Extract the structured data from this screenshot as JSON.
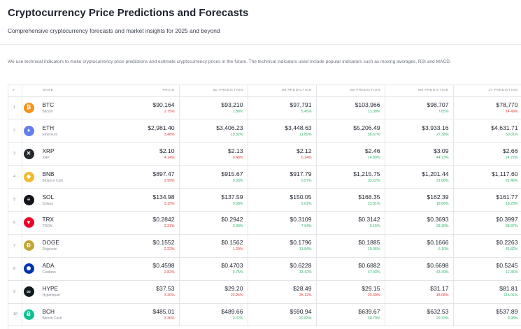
{
  "header": {
    "title": "Cryptocurrency Price Predictions and Forecasts",
    "subtitle": "Comprehensive cryptocurrency forecasts and market insights for 2025 and beyond"
  },
  "intro": "We use technical indicators to make cryptocurrency price predictions and estimate cryptocurrency prices in the future. The technical indicators used include popular indicators such as moving averages, RSI and MACD.",
  "table": {
    "columns": [
      "#",
      "NAME",
      "PRICE",
      "5D PREDICTION",
      "1M PREDICTION",
      "3M PREDICTION",
      "6M PREDICTION",
      "1Y PREDICTION"
    ],
    "rows": [
      {
        "rank": "1",
        "symbol": "BTC",
        "name": "Bitcoin",
        "icon": "bitcoin-icon",
        "color": "#f7931a",
        "glyph": "₿",
        "cells": [
          [
            "$90,164",
            "2.75%",
            "down"
          ],
          [
            "$93,210",
            "1.88%",
            "up"
          ],
          [
            "$97,791",
            "5.45%",
            "up"
          ],
          [
            "$103,966",
            "13.38%",
            "up"
          ],
          [
            "$98,707",
            "7.65%",
            "up"
          ],
          [
            "$78,770",
            "14.49%",
            "down"
          ]
        ]
      },
      {
        "rank": "2",
        "symbol": "ETH",
        "name": "Ethereum",
        "icon": "ethereum-icon",
        "color": "#627eea",
        "glyph": "♦",
        "cells": [
          [
            "$2,981.40",
            "3.48%",
            "down"
          ],
          [
            "$3,406.23",
            "10.32%",
            "up"
          ],
          [
            "$3,448.63",
            "11.69%",
            "up"
          ],
          [
            "$5,206.49",
            "58.67%",
            "up"
          ],
          [
            "$3,933.16",
            "27.38%",
            "up"
          ],
          [
            "$4,631.71",
            "50.01%",
            "up"
          ]
        ]
      },
      {
        "rank": "3",
        "symbol": "XRP",
        "name": "XRP",
        "icon": "xrp-icon",
        "color": "#23292f",
        "glyph": "✕",
        "cells": [
          [
            "$2.10",
            "4.14%",
            "down"
          ],
          [
            "$2.13",
            "0.48%",
            "down"
          ],
          [
            "$2.12",
            "0.14%",
            "down"
          ],
          [
            "$2.46",
            "14.90%",
            "up"
          ],
          [
            "$3.09",
            "44.73%",
            "up"
          ],
          [
            "$2.66",
            "24.72%",
            "up"
          ]
        ]
      },
      {
        "rank": "4",
        "symbol": "BNB",
        "name": "Binance Coin",
        "icon": "binance-icon",
        "color": "#f3ba2f",
        "glyph": "◆",
        "cells": [
          [
            "$897.47",
            "2.99%",
            "down"
          ],
          [
            "$915.67",
            "0.33%",
            "up"
          ],
          [
            "$917.79",
            "0.57%",
            "up"
          ],
          [
            "$1,215.75",
            "33.22%",
            "up"
          ],
          [
            "$1,201.44",
            "31.68%",
            "up"
          ],
          [
            "$1,117.60",
            "22.46%",
            "up"
          ]
        ]
      },
      {
        "rank": "5",
        "symbol": "SOL",
        "name": "Solana",
        "icon": "solana-icon",
        "color": "#111318",
        "glyph": "≡",
        "cells": [
          [
            "$134.98",
            "3.15%",
            "down"
          ],
          [
            "$137.59",
            "0.58%",
            "up"
          ],
          [
            "$150.05",
            "9.61%",
            "up"
          ],
          [
            "$168.35",
            "23.01%",
            "up"
          ],
          [
            "$162.39",
            "18.66%",
            "up"
          ],
          [
            "$161.77",
            "18.20%",
            "up"
          ]
        ]
      },
      {
        "rank": "6",
        "symbol": "TRX",
        "name": "TRON",
        "icon": "tron-icon",
        "color": "#eb0029",
        "glyph": "▼",
        "cells": [
          [
            "$0.2842",
            "2.31%",
            "down"
          ],
          [
            "$0.2942",
            "3.39%",
            "up"
          ],
          [
            "$0.3109",
            "7.94%",
            "up"
          ],
          [
            "$0.3142",
            "9.15%",
            "up"
          ],
          [
            "$0.3693",
            "28.30%",
            "up"
          ],
          [
            "$0.3997",
            "38.87%",
            "up"
          ]
        ]
      },
      {
        "rank": "7",
        "symbol": "DOGE",
        "name": "Dogecoin",
        "icon": "dogecoin-icon",
        "color": "#c2a633",
        "glyph": "Ð",
        "cells": [
          [
            "$0.1552",
            "2.22%",
            "down"
          ],
          [
            "$0.1562",
            "1.29%",
            "down"
          ],
          [
            "$0.1796",
            "13.84%",
            "up"
          ],
          [
            "$0.1885",
            "19.46%",
            "up"
          ],
          [
            "$0.1666",
            "6.10%",
            "up"
          ],
          [
            "$0.2263",
            "43.82%",
            "up"
          ]
        ]
      },
      {
        "rank": "8",
        "symbol": "ADA",
        "name": "Cardano",
        "icon": "cardano-icon",
        "color": "#0033ad",
        "glyph": "✺",
        "cells": [
          [
            "$0.4598",
            "2.82%",
            "down"
          ],
          [
            "$0.4703",
            "0.75%",
            "up"
          ],
          [
            "$0.6228",
            "33.42%",
            "up"
          ],
          [
            "$0.6882",
            "47.43%",
            "up"
          ],
          [
            "$0.6698",
            "43.49%",
            "up"
          ],
          [
            "$0.5245",
            "12.36%",
            "up"
          ]
        ]
      },
      {
        "rank": "9",
        "symbol": "HYPE",
        "name": "Hyperliquid",
        "icon": "hyperliquid-icon",
        "color": "#0f1a1f",
        "glyph": "∞",
        "cells": [
          [
            "$37.53",
            "3.26%",
            "down"
          ],
          [
            "$29.20",
            "23.24%",
            "down"
          ],
          [
            "$28.49",
            "25.12%",
            "down"
          ],
          [
            "$29.15",
            "23.39%",
            "down"
          ],
          [
            "$31.17",
            "18.08%",
            "down"
          ],
          [
            "$81.81",
            "115.01%",
            "up"
          ]
        ]
      },
      {
        "rank": "10",
        "symbol": "BCH",
        "name": "Bitcoin Cash",
        "icon": "bitcoin-cash-icon",
        "color": "#0ac18e",
        "glyph": "Ƀ",
        "cells": [
          [
            "$485.01",
            "3.36%",
            "down"
          ],
          [
            "$489.66",
            "0.32%",
            "up"
          ],
          [
            "$590.94",
            "20.83%",
            "up"
          ],
          [
            "$639.67",
            "30.79%",
            "up"
          ],
          [
            "$632.53",
            "29.33%",
            "up"
          ],
          [
            "$537.89",
            "9.98%",
            "up"
          ]
        ]
      }
    ]
  }
}
